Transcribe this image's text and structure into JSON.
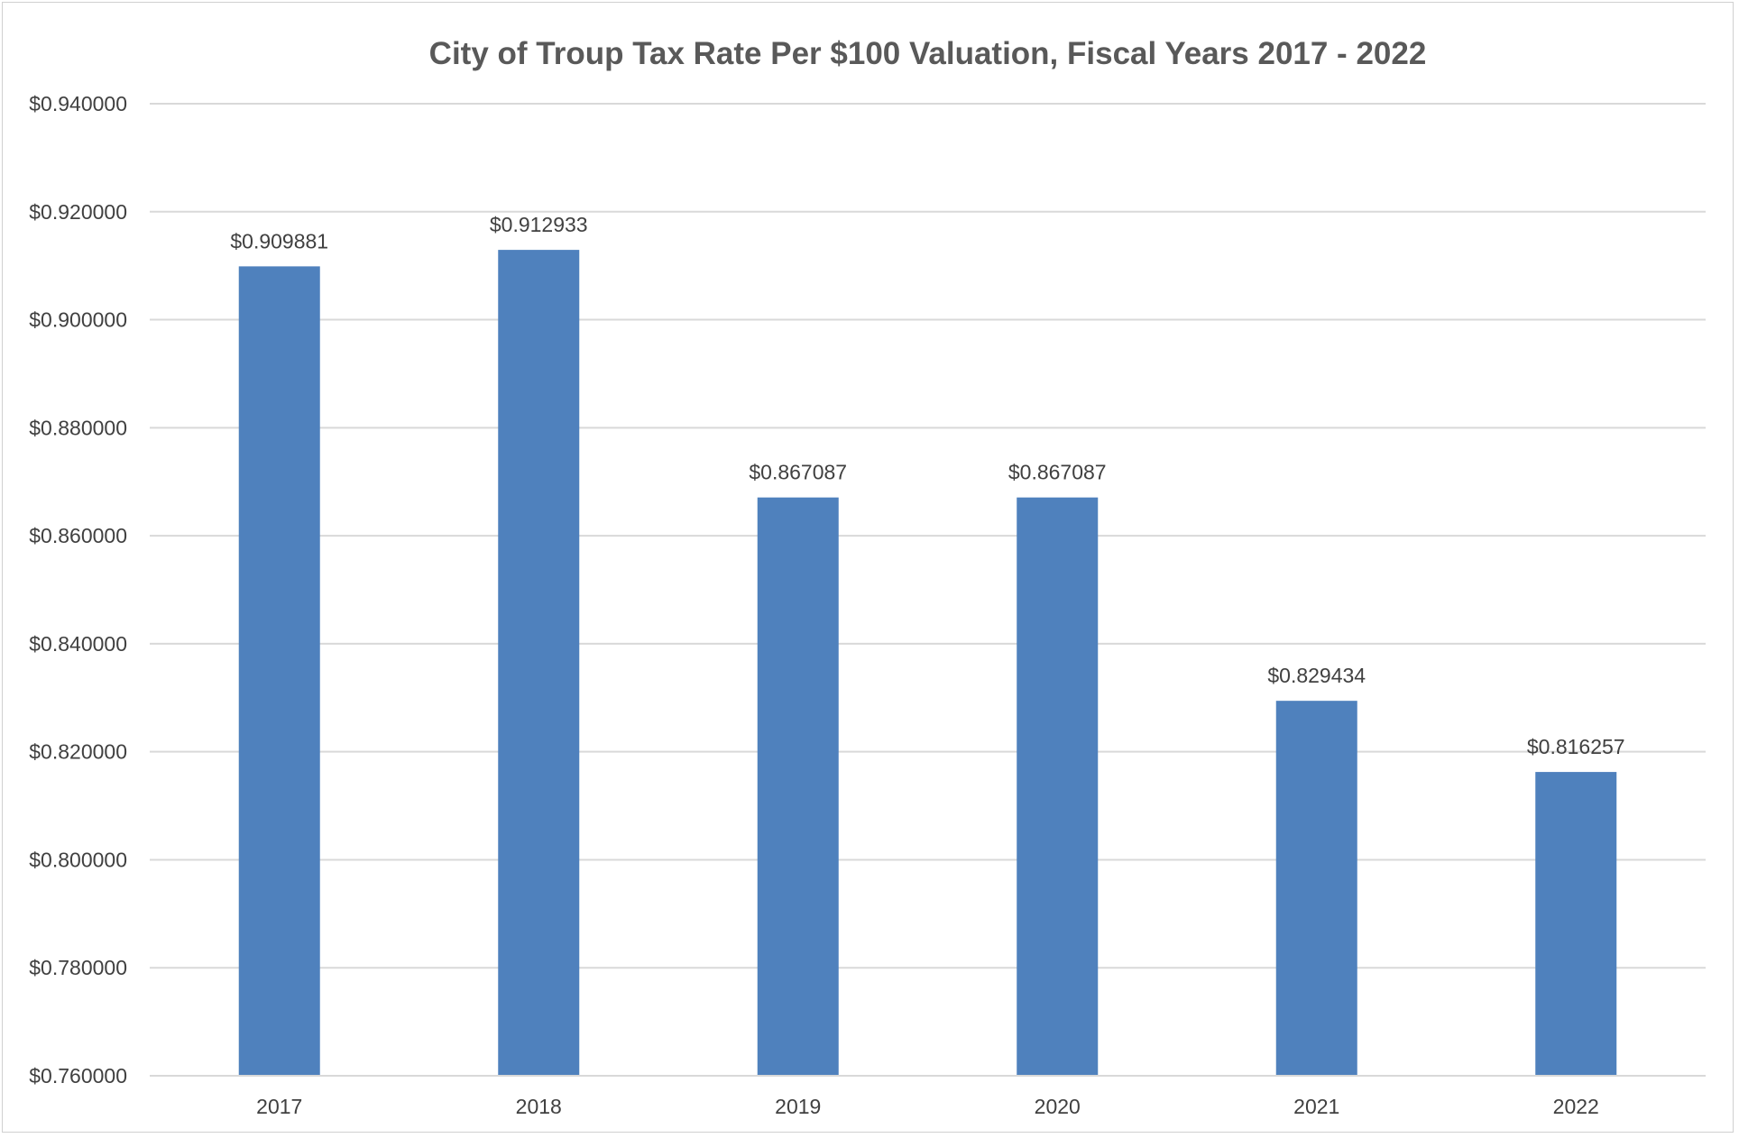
{
  "chart_data": {
    "type": "bar",
    "title": "City of Troup Tax Rate Per $100 Valuation, Fiscal Years 2017 - 2022",
    "xlabel": "",
    "ylabel": "",
    "categories": [
      "2017",
      "2018",
      "2019",
      "2020",
      "2021",
      "2022"
    ],
    "values": [
      0.909881,
      0.912933,
      0.867087,
      0.867087,
      0.829434,
      0.816257
    ],
    "data_labels": [
      "$0.909881",
      "$0.912933",
      "$0.867087",
      "$0.867087",
      "$0.829434",
      "$0.816257"
    ],
    "ylim": [
      0.76,
      0.94
    ],
    "y_ticks": [
      0.76,
      0.78,
      0.8,
      0.82,
      0.84,
      0.86,
      0.88,
      0.9,
      0.92,
      0.94
    ],
    "y_tick_labels": [
      "$0.760000",
      "$0.780000",
      "$0.800000",
      "$0.820000",
      "$0.840000",
      "$0.860000",
      "$0.880000",
      "$0.900000",
      "$0.920000",
      "$0.940000"
    ],
    "grid": true,
    "legend": "none",
    "bar_color": "#4f81bd"
  }
}
